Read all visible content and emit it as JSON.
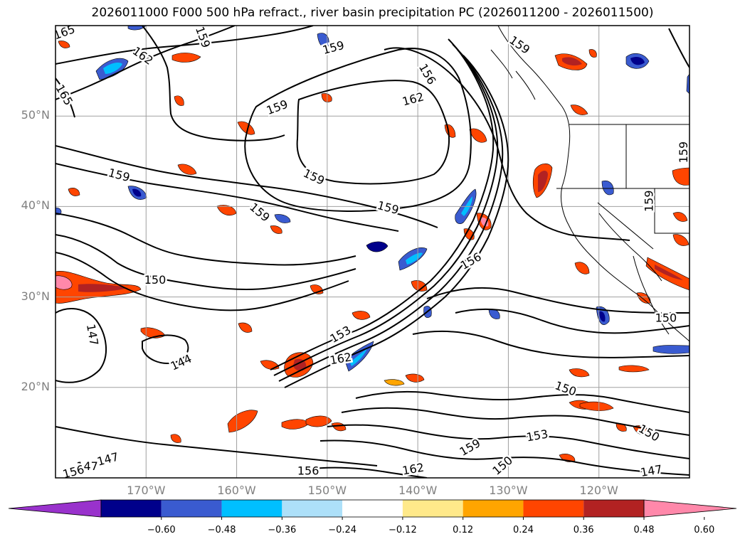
{
  "title": "2026011000 F000 500 hPa refract., river basin precipitation PC (2026011200 - 2026011500)",
  "map": {
    "lat_labels": [
      "50°N",
      "40°N",
      "30°N",
      "20°N"
    ],
    "lat_values": [
      50,
      40,
      30,
      20
    ],
    "lon_labels": [
      "170°W",
      "160°W",
      "150°W",
      "140°W",
      "130°W",
      "120°W"
    ],
    "lon_values": [
      -170,
      -160,
      -150,
      -140,
      -130,
      -120
    ],
    "extent": {
      "lon_min": -180,
      "lon_max": -110,
      "lat_min": 10,
      "lat_max": 60
    },
    "grid": true,
    "contour_labels": [
      {
        "text": "165",
        "lon": -179,
        "lat": 59.2,
        "rot": -20
      },
      {
        "text": "162",
        "lon": -170.4,
        "lat": 56.6,
        "rot": 35
      },
      {
        "text": "159",
        "lon": -163.8,
        "lat": 58.7,
        "rot": 70
      },
      {
        "text": "165",
        "lon": -179.1,
        "lat": 52.3,
        "rot": 60
      },
      {
        "text": "159",
        "lon": -149.3,
        "lat": 57.5,
        "rot": -15
      },
      {
        "text": "156",
        "lon": -139,
        "lat": 54.6,
        "rot": 60
      },
      {
        "text": "159",
        "lon": -128.8,
        "lat": 57.8,
        "rot": 35
      },
      {
        "text": "162",
        "lon": -140.5,
        "lat": 51.8,
        "rot": -15
      },
      {
        "text": "159",
        "lon": -155.5,
        "lat": 50.9,
        "rot": -20
      },
      {
        "text": "159",
        "lon": -173,
        "lat": 43.4,
        "rot": 15
      },
      {
        "text": "159",
        "lon": -151.5,
        "lat": 43.2,
        "rot": 25
      },
      {
        "text": "159",
        "lon": -157.5,
        "lat": 39.3,
        "rot": 40
      },
      {
        "text": "159",
        "lon": -143.3,
        "lat": 39.8,
        "rot": 15
      },
      {
        "text": "159",
        "lon": -114.4,
        "lat": 40.6,
        "rot": -90
      },
      {
        "text": "156",
        "lon": -134.1,
        "lat": 33.9,
        "rot": -30
      },
      {
        "text": "150",
        "lon": -169,
        "lat": 31.8,
        "rot": 0
      },
      {
        "text": "150",
        "lon": -112.6,
        "lat": 27.6,
        "rot": 0
      },
      {
        "text": "147",
        "lon": -176,
        "lat": 25.8,
        "rot": 80
      },
      {
        "text": "144",
        "lon": -166.1,
        "lat": 22.7,
        "rot": -25
      },
      {
        "text": "153",
        "lon": -148.5,
        "lat": 25.8,
        "rot": -30
      },
      {
        "text": "162",
        "lon": -148.5,
        "lat": 23.1,
        "rot": -10
      },
      {
        "text": "150",
        "lon": -123.7,
        "lat": 19.8,
        "rot": 20
      },
      {
        "text": "150",
        "lon": -114.5,
        "lat": 14.9,
        "rot": 30
      },
      {
        "text": "153",
        "lon": -126.8,
        "lat": 14.6,
        "rot": -10
      },
      {
        "text": "159",
        "lon": -134.2,
        "lat": 13.3,
        "rot": -30
      },
      {
        "text": "150",
        "lon": -130.6,
        "lat": 11.3,
        "rot": -40
      },
      {
        "text": "147",
        "lon": -174.2,
        "lat": 12,
        "rot": -15
      },
      {
        "text": "147",
        "lon": -176.5,
        "lat": 11.2,
        "rot": 0
      },
      {
        "text": "156",
        "lon": -178,
        "lat": 10.6,
        "rot": -15
      },
      {
        "text": "156",
        "lon": -152.1,
        "lat": 10.7,
        "rot": 0
      },
      {
        "text": "162",
        "lon": -140.5,
        "lat": 10.9,
        "rot": -10
      },
      {
        "text": "147",
        "lon": -114.2,
        "lat": 10.7,
        "rot": -10
      },
      {
        "text": "159",
        "lon": -110.6,
        "lat": 46,
        "rot": -90
      }
    ],
    "colors": {
      "contour": "#000000",
      "grid": "#a0a0a0",
      "coast": "#000000"
    }
  },
  "colorbar": {
    "ticks": [
      "−0.60",
      "−0.48",
      "−0.36",
      "−0.24",
      "−0.12",
      "0.12",
      "0.24",
      "0.36",
      "0.48",
      "0.60"
    ],
    "colors": [
      "#9932cc",
      "#00008b",
      "#3a5bd0",
      "#00bfff",
      "#ade0f9",
      "#ffffff",
      "#ffe98a",
      "#ffa500",
      "#ff4500",
      "#b22222",
      "#ff88aa"
    ]
  }
}
